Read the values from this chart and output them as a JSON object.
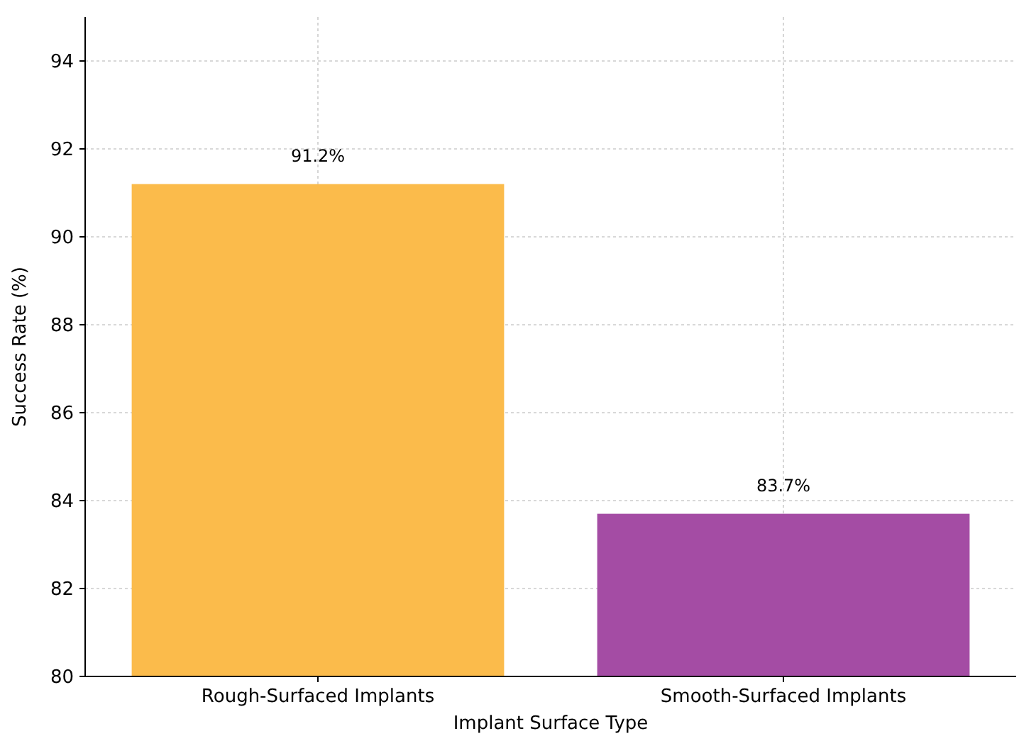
{
  "chart_data": {
    "type": "bar",
    "xlabel": "Implant Surface Type",
    "ylabel": "Success Rate (%)",
    "categories": [
      "Rough-Surfaced Implants",
      "Smooth-Surfaced Implants"
    ],
    "values": [
      91.2,
      83.7
    ],
    "colors": [
      "#fbbb4b",
      "#a44ca4"
    ],
    "value_labels": [
      "91.2%",
      "83.7%"
    ],
    "ylim": [
      80,
      95
    ],
    "yticks": [
      80,
      82,
      84,
      86,
      88,
      90,
      92,
      94
    ],
    "grid": true
  }
}
